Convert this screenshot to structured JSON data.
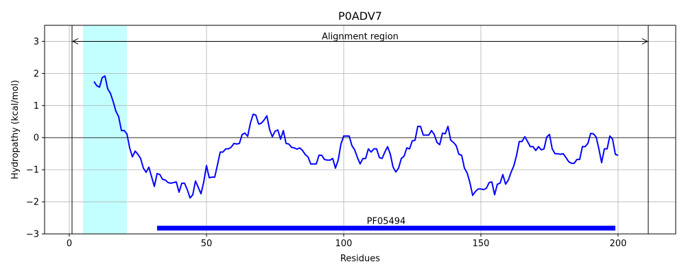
{
  "chart_data": {
    "type": "line",
    "title": "P0ADV7",
    "xlabel": "Residues",
    "ylabel": "Hydropathy (kcal/mol)",
    "xlim": [
      -9,
      221
    ],
    "ylim": [
      -3,
      3.5
    ],
    "xticks": [
      0,
      50,
      100,
      150,
      200
    ],
    "yticks": [
      -3,
      -2,
      -1,
      0,
      1,
      2,
      3
    ],
    "grid": true,
    "series_color": "#0000ff",
    "shade_color": "#c4ffff",
    "shaded_region": [
      5,
      21
    ],
    "vertical_lines": [
      1,
      211
    ],
    "zero_line": true,
    "alignment": {
      "label": "Alignment region",
      "start": 1,
      "end": 211,
      "y": 3.0
    },
    "domain_bar": {
      "label": "PF05494",
      "start": 32,
      "end": 199,
      "y": -2.82,
      "color": "#0000ff"
    },
    "series": [
      {
        "x": [
          9,
          10,
          11,
          12,
          13,
          14,
          15,
          16,
          17,
          18,
          19,
          20,
          21,
          22,
          23,
          24,
          25,
          26,
          27,
          28,
          29,
          30,
          31,
          32,
          33,
          34,
          35,
          36,
          37,
          38,
          39,
          40,
          41,
          42,
          43,
          44,
          45,
          46,
          47,
          48,
          49,
          50,
          51,
          52,
          53,
          54,
          55,
          56,
          57,
          58,
          59,
          60,
          61,
          62,
          63,
          64,
          65,
          66,
          67,
          68,
          69,
          70,
          71,
          72,
          73,
          74,
          75,
          76,
          77,
          78,
          79,
          80,
          81,
          82,
          83,
          84,
          85,
          86,
          87,
          88,
          89,
          90,
          91,
          92,
          93,
          94,
          95,
          96,
          97,
          98,
          99,
          100,
          101,
          102,
          103,
          104,
          105,
          106,
          107,
          108,
          109,
          110,
          111,
          112,
          113,
          114,
          115,
          116,
          117,
          118,
          119,
          120,
          121,
          122,
          123,
          124,
          125,
          126,
          127,
          128,
          129,
          130,
          131,
          132,
          133,
          134,
          135,
          136,
          137,
          138,
          139,
          140,
          141,
          142,
          143,
          144,
          145,
          146,
          147,
          148,
          149,
          150,
          151,
          152,
          153,
          154,
          155,
          156,
          157,
          158,
          159,
          160,
          161,
          162,
          163,
          164,
          165,
          166,
          167,
          168,
          169,
          170,
          171,
          172,
          173,
          174,
          175,
          176,
          177,
          178,
          179,
          180,
          181,
          182,
          183,
          184,
          185,
          186,
          187,
          188,
          189,
          190,
          191,
          192,
          193,
          194,
          195,
          196,
          197,
          198,
          199,
          200
        ],
        "y": [
          1.75,
          1.62,
          1.57,
          1.87,
          1.92,
          1.52,
          1.38,
          1.12,
          0.82,
          0.65,
          0.22,
          0.22,
          0.12,
          -0.32,
          -0.6,
          -0.42,
          -0.52,
          -0.65,
          -0.95,
          -1.08,
          -0.92,
          -1.22,
          -1.52,
          -1.12,
          -1.15,
          -1.3,
          -1.32,
          -1.4,
          -1.42,
          -1.4,
          -1.38,
          -1.7,
          -1.42,
          -1.42,
          -1.62,
          -1.88,
          -1.78,
          -1.35,
          -1.55,
          -1.75,
          -1.38,
          -0.87,
          -1.25,
          -1.23,
          -1.23,
          -0.85,
          -0.45,
          -0.45,
          -0.35,
          -0.35,
          -0.3,
          -0.18,
          -0.2,
          -0.18,
          0.1,
          0.14,
          0.04,
          0.45,
          0.73,
          0.7,
          0.42,
          0.45,
          0.55,
          0.68,
          0.25,
          0.03,
          0.2,
          0.24,
          -0.05,
          0.22,
          -0.18,
          -0.2,
          -0.3,
          -0.32,
          -0.36,
          -0.32,
          -0.4,
          -0.53,
          -0.6,
          -0.82,
          -0.82,
          -0.82,
          -0.55,
          -0.55,
          -0.68,
          -0.7,
          -0.7,
          -0.65,
          -0.95,
          -0.7,
          -0.2,
          0.05,
          0.05,
          0.05,
          -0.25,
          -0.38,
          -0.62,
          -0.82,
          -0.65,
          -0.65,
          -0.35,
          -0.45,
          -0.35,
          -0.35,
          -0.62,
          -0.65,
          -0.45,
          -0.28,
          -0.52,
          -0.92,
          -1.07,
          -0.95,
          -0.65,
          -0.58,
          -0.32,
          -0.35,
          -0.1,
          -0.08,
          0.35,
          0.35,
          0.08,
          0.08,
          0.08,
          0.22,
          0.1,
          -0.15,
          -0.22,
          0.14,
          0.12,
          0.35,
          -0.08,
          -0.15,
          -0.25,
          -0.52,
          -0.55,
          -0.95,
          -1.1,
          -1.4,
          -1.8,
          -1.68,
          -1.6,
          -1.6,
          -1.62,
          -1.58,
          -1.4,
          -1.38,
          -1.78,
          -1.45,
          -1.42,
          -1.15,
          -1.45,
          -1.32,
          -1.08,
          -0.88,
          -0.55,
          -0.12,
          -0.12,
          0.03,
          -0.12,
          -0.28,
          -0.28,
          -0.4,
          -0.28,
          -0.38,
          -0.35,
          0.02,
          0.1,
          -0.35,
          -0.5,
          -0.5,
          -0.52,
          -0.5,
          -0.62,
          -0.75,
          -0.8,
          -0.8,
          -0.68,
          -0.68,
          -0.28,
          -0.28,
          -0.18,
          0.13,
          0.12,
          0.02,
          -0.35,
          -0.78,
          -0.35,
          -0.35,
          0.05,
          -0.05,
          -0.52,
          -0.55
        ]
      }
    ]
  }
}
